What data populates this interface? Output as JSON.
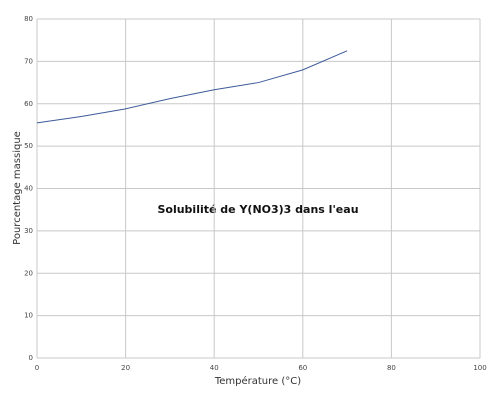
{
  "chart_data": {
    "type": "line",
    "title": "Solubilité de Y(NO3)3 dans l'eau",
    "x_label": "Température (°C)",
    "y_label": "Pourcentage massique",
    "x": [
      0,
      10,
      20,
      30,
      40,
      50,
      60,
      70
    ],
    "values": [
      55.5,
      57,
      58.8,
      61.2,
      63.3,
      65,
      68,
      72.5
    ],
    "color": "#3c5a9a",
    "xlim": [
      0,
      100
    ],
    "xticks": [
      0,
      20,
      40,
      60,
      80,
      100
    ],
    "ylim": [
      0,
      80
    ],
    "yticks": [
      0,
      10,
      20,
      30,
      40,
      50,
      60,
      70,
      80
    ],
    "grid": true
  }
}
